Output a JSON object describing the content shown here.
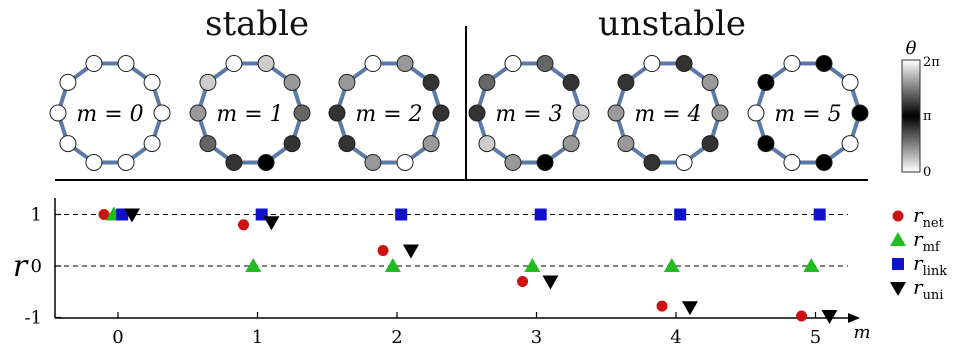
{
  "titles": {
    "left": "stable",
    "right": "unstable"
  },
  "rings": [
    {
      "label": "m = 0",
      "m": 0,
      "group": "stable",
      "node_phases": [
        0,
        0,
        0,
        0,
        0,
        0,
        0,
        0,
        0,
        0
      ]
    },
    {
      "label": "m = 1",
      "m": 1,
      "group": "stable",
      "node_phases": [
        0,
        0.628,
        1.257,
        1.885,
        2.513,
        3.142,
        3.77,
        4.398,
        5.027,
        5.655
      ]
    },
    {
      "label": "m = 2",
      "m": 2,
      "group": "stable",
      "node_phases": [
        0,
        1.257,
        2.513,
        3.77,
        5.027,
        0,
        1.257,
        2.513,
        3.77,
        5.027
      ]
    },
    {
      "label": "m = 3",
      "m": 3,
      "group": "unstable",
      "node_phases": [
        0,
        1.885,
        3.77,
        5.655,
        1.257,
        3.142,
        5.027,
        0.628,
        2.513,
        4.398
      ]
    },
    {
      "label": "m = 4",
      "m": 4,
      "group": "unstable",
      "node_phases": [
        0,
        2.513,
        5.027,
        1.257,
        3.77,
        0,
        2.513,
        5.027,
        1.257,
        3.77
      ]
    },
    {
      "label": "m = 5",
      "m": 5,
      "group": "unstable",
      "node_phases": [
        0,
        3.142,
        0,
        3.142,
        0,
        3.142,
        0,
        3.142,
        0,
        3.142
      ]
    }
  ],
  "colorbar": {
    "title": "θ",
    "ticks": [
      {
        "label": "2π",
        "value": 6.283
      },
      {
        "label": "π",
        "value": 3.142
      },
      {
        "label": "0",
        "value": 0
      }
    ]
  },
  "colors": {
    "ring_edge": "#5b7aa8",
    "red": "#cc1111",
    "green": "#22bb22",
    "blue": "#1111cc",
    "black": "#000000"
  },
  "chart_data": {
    "type": "scatter",
    "ylabel": "r",
    "xlabel": "m",
    "xlim": [
      -0.4,
      5.4
    ],
    "ylim": [
      -1,
      1.2
    ],
    "xticks": [
      "0",
      "1",
      "2",
      "3",
      "4",
      "5"
    ],
    "yticks": [
      "1",
      "0",
      "-1"
    ],
    "reference_lines": [
      1,
      0
    ],
    "series": [
      {
        "name": "r_net",
        "symbol": "r",
        "subscript": "net",
        "marker": "circle",
        "color": "#cc1111",
        "points": [
          [
            -0.1,
            1.0
          ],
          [
            0.9,
            0.8
          ],
          [
            1.9,
            0.3
          ],
          [
            2.9,
            -0.3
          ],
          [
            3.9,
            -0.78
          ],
          [
            4.9,
            -0.97
          ]
        ]
      },
      {
        "name": "r_mf",
        "symbol": "r",
        "subscript": "mf",
        "marker": "triangle-up",
        "color": "#22bb22",
        "points": [
          [
            -0.03,
            1.0
          ],
          [
            0.97,
            0.0
          ],
          [
            1.97,
            0.0
          ],
          [
            2.97,
            0.0
          ],
          [
            3.97,
            0.0
          ],
          [
            4.97,
            0.0
          ]
        ]
      },
      {
        "name": "r_link",
        "symbol": "r",
        "subscript": "link",
        "marker": "square",
        "color": "#1111cc",
        "points": [
          [
            0.03,
            1.0
          ],
          [
            1.03,
            1.0
          ],
          [
            2.03,
            1.0
          ],
          [
            3.03,
            1.0
          ],
          [
            4.03,
            1.0
          ],
          [
            5.03,
            1.0
          ]
        ]
      },
      {
        "name": "r_uni",
        "symbol": "r",
        "subscript": "uni",
        "marker": "triangle-down",
        "color": "#000000",
        "points": [
          [
            0.1,
            1.0
          ],
          [
            1.1,
            0.85
          ],
          [
            2.1,
            0.3
          ],
          [
            3.1,
            -0.3
          ],
          [
            4.1,
            -0.8
          ],
          [
            5.1,
            -0.97
          ]
        ]
      }
    ]
  }
}
